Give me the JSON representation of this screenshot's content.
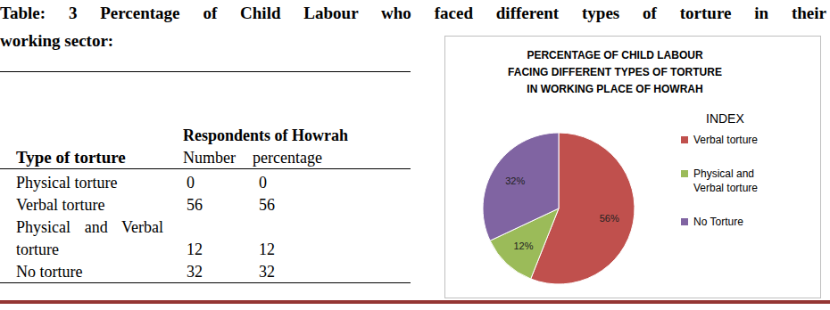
{
  "caption": [
    "Table: 3 Percentage of Child Labour who faced different types of torture in their",
    "working sector:"
  ],
  "table": {
    "group_header": "Respondents of Howrah",
    "columns": [
      "Type of torture",
      "Number",
      "percentage"
    ],
    "rows": [
      [
        "Physical torture",
        0,
        0
      ],
      [
        "Verbal torture",
        56,
        56
      ],
      [
        "Physical and Verbal torture",
        12,
        12
      ],
      [
        "No torture",
        32,
        32
      ]
    ]
  },
  "chart_data": {
    "type": "pie",
    "title": [
      "PERCENTAGE OF CHILD LABOUR",
      "FACING DIFFERENT TYPES OF TORTURE",
      "IN WORKING PLACE OF HOWRAH"
    ],
    "categories": [
      "Verbal torture",
      "Physical and Verbal torture",
      "No Torture"
    ],
    "values": [
      56,
      12,
      32
    ],
    "value_labels": [
      "56%",
      "12%",
      "32%"
    ],
    "colors": [
      "#c0504d",
      "#9bbb59",
      "#8064a2"
    ],
    "data_labels": true,
    "legend": "right",
    "legend_title": "INDEX"
  }
}
